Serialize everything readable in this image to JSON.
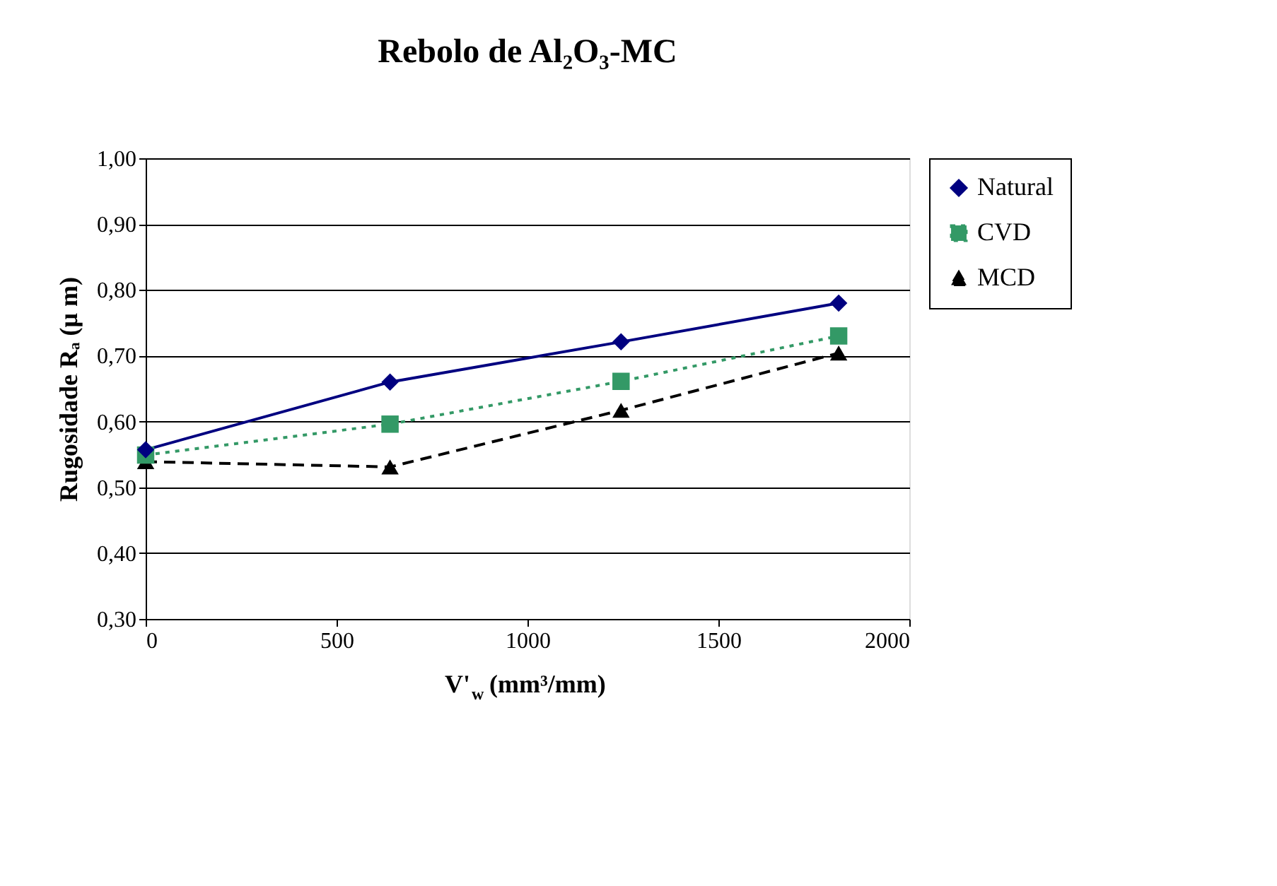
{
  "chart_data": {
    "type": "line",
    "title": "Rebolo de Al₂O₃-MC",
    "xlabel": "V'$_{w}$ (mm³/mm)",
    "ylabel": "Rugosidade Rₐ (μ m)",
    "x": [
      0,
      640,
      1245,
      1815
    ],
    "series": [
      {
        "name": "Natural",
        "color": "#000080",
        "marker": "diamond",
        "line_style": "solid",
        "values": [
          0.557,
          0.66,
          0.721,
          0.78
        ]
      },
      {
        "name": "CVD",
        "color": "#339966",
        "marker": "square",
        "line_style": "dotted",
        "values": [
          0.549,
          0.596,
          0.661,
          0.73
        ]
      },
      {
        "name": "MCD",
        "color": "#000000",
        "marker": "triangle",
        "line_style": "dashed",
        "values": [
          0.539,
          0.531,
          0.617,
          0.704
        ]
      }
    ],
    "xlim": [
      0,
      2000
    ],
    "xticks": [
      0,
      500,
      1000,
      1500,
      2000
    ],
    "ylim": [
      0.3,
      1.0
    ],
    "yticks": [
      {
        "value": 0.3,
        "label": "0,30"
      },
      {
        "value": 0.4,
        "label": "0,40"
      },
      {
        "value": 0.5,
        "label": "0,50"
      },
      {
        "value": 0.6,
        "label": "0,60"
      },
      {
        "value": 0.7,
        "label": "0,70"
      },
      {
        "value": 0.8,
        "label": "0,80"
      },
      {
        "value": 0.9,
        "label": "0,90"
      },
      {
        "value": 1.0,
        "label": "1,00"
      }
    ],
    "grid": "y",
    "legend": "right"
  }
}
